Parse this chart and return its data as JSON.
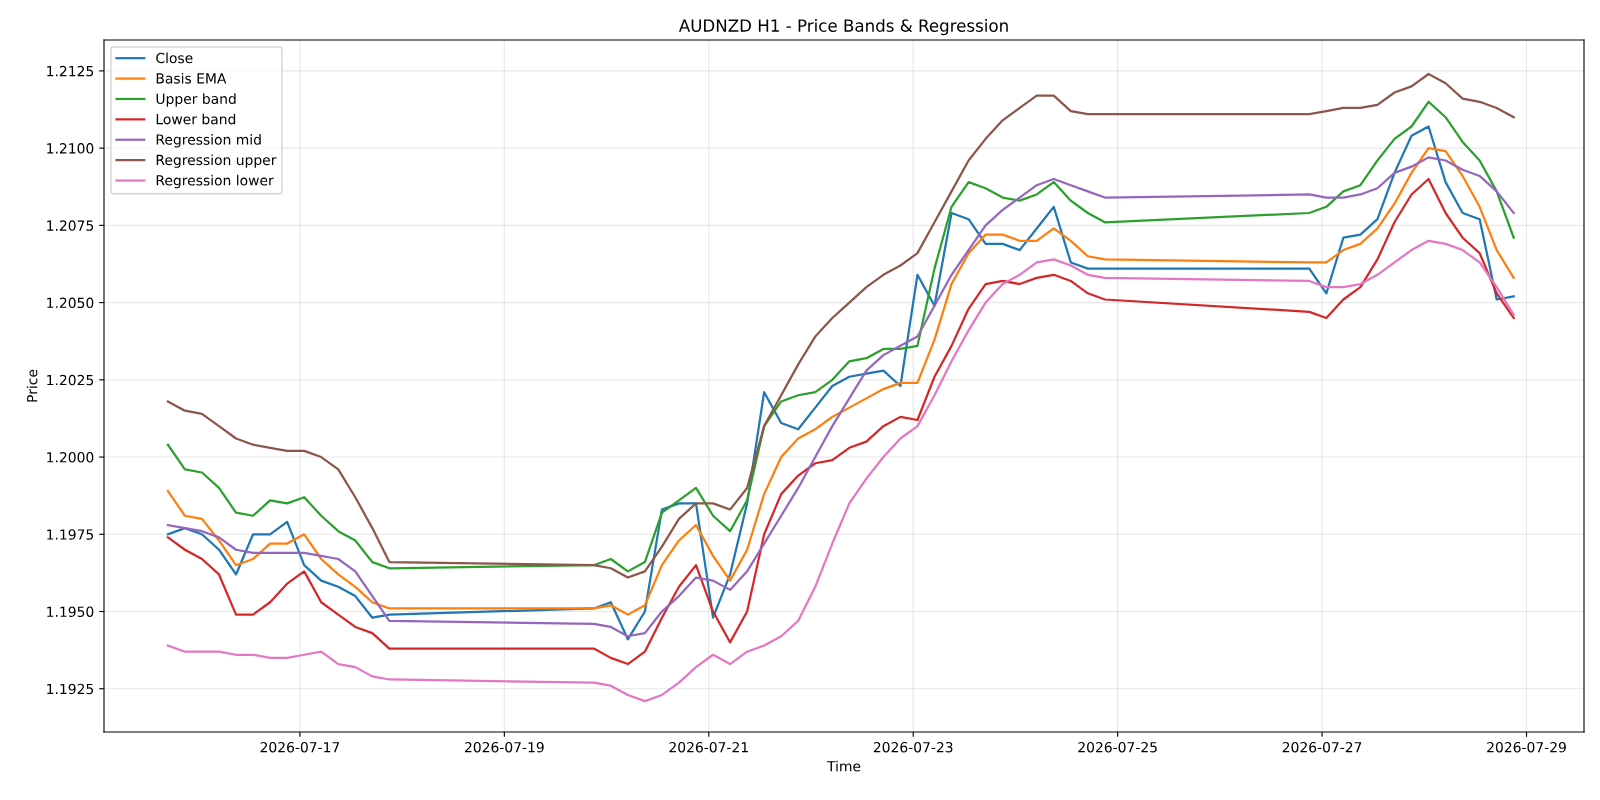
{
  "chart_data": {
    "type": "line",
    "title": "AUDNZD H1 - Price Bands & Regression",
    "xlabel": "Time",
    "ylabel": "Price",
    "x": [
      "2026-07-15T17:00",
      "2026-07-15T21:00",
      "2026-07-16T01:00",
      "2026-07-16T05:00",
      "2026-07-16T09:00",
      "2026-07-16T13:00",
      "2026-07-16T17:00",
      "2026-07-16T21:00",
      "2026-07-17T01:00",
      "2026-07-17T05:00",
      "2026-07-17T09:00",
      "2026-07-17T13:00",
      "2026-07-17T17:00",
      "2026-07-17T21:00",
      "2026-07-19T21:00",
      "2026-07-20T01:00",
      "2026-07-20T05:00",
      "2026-07-20T09:00",
      "2026-07-20T13:00",
      "2026-07-20T17:00",
      "2026-07-20T21:00",
      "2026-07-21T01:00",
      "2026-07-21T05:00",
      "2026-07-21T09:00",
      "2026-07-21T13:00",
      "2026-07-21T17:00",
      "2026-07-21T21:00",
      "2026-07-22T01:00",
      "2026-07-22T05:00",
      "2026-07-22T09:00",
      "2026-07-22T13:00",
      "2026-07-22T17:00",
      "2026-07-22T21:00",
      "2026-07-23T01:00",
      "2026-07-23T05:00",
      "2026-07-23T09:00",
      "2026-07-23T13:00",
      "2026-07-23T17:00",
      "2026-07-23T21:00",
      "2026-07-24T01:00",
      "2026-07-24T05:00",
      "2026-07-24T09:00",
      "2026-07-24T13:00",
      "2026-07-24T17:00",
      "2026-07-24T21:00",
      "2026-07-26T21:00",
      "2026-07-27T01:00",
      "2026-07-27T05:00",
      "2026-07-27T09:00",
      "2026-07-27T13:00",
      "2026-07-27T17:00",
      "2026-07-27T21:00",
      "2026-07-28T01:00",
      "2026-07-28T05:00",
      "2026-07-28T09:00",
      "2026-07-28T13:00",
      "2026-07-28T17:00",
      "2026-07-28T21:00"
    ],
    "series": [
      {
        "name": "Close",
        "color": "#1f77b4",
        "values": [
          1.1975,
          1.1977,
          1.1975,
          1.197,
          1.1962,
          1.1975,
          1.1975,
          1.1979,
          1.1965,
          1.196,
          1.1958,
          1.1955,
          1.1948,
          1.1949,
          1.1951,
          1.1953,
          1.1941,
          1.195,
          1.1983,
          1.1985,
          1.1985,
          1.1948,
          1.1962,
          1.1985,
          1.2021,
          1.2011,
          1.2009,
          1.2016,
          1.2023,
          1.2026,
          1.2027,
          1.2028,
          1.2023,
          1.2059,
          1.2049,
          1.2079,
          1.2077,
          1.2069,
          1.2069,
          1.2067,
          1.2074,
          1.2081,
          1.2063,
          1.2061,
          1.2061,
          1.2061,
          1.2053,
          1.2071,
          1.2072,
          1.2077,
          1.2092,
          1.2104,
          1.2107,
          1.2089,
          1.2079,
          1.2077,
          1.2051,
          1.2052
        ]
      },
      {
        "name": "Basis EMA",
        "color": "#ff7f0e",
        "values": [
          1.1989,
          1.1981,
          1.198,
          1.1973,
          1.1965,
          1.1967,
          1.1972,
          1.1972,
          1.1975,
          1.1967,
          1.1962,
          1.1958,
          1.1953,
          1.1951,
          1.1951,
          1.1952,
          1.1949,
          1.1952,
          1.1965,
          1.1973,
          1.1978,
          1.1968,
          1.196,
          1.197,
          1.1988,
          1.2,
          1.2006,
          1.2009,
          1.2013,
          1.2016,
          1.2019,
          1.2022,
          1.2024,
          1.2024,
          1.2038,
          1.2056,
          1.2066,
          1.2072,
          1.2072,
          1.207,
          1.207,
          1.2074,
          1.207,
          1.2065,
          1.2064,
          1.2063,
          1.2063,
          1.2067,
          1.2069,
          1.2074,
          1.2082,
          1.2092,
          1.21,
          1.2099,
          1.2091,
          1.2081,
          1.2067,
          1.2058
        ]
      },
      {
        "name": "Upper band",
        "color": "#2ca02c",
        "values": [
          1.2004,
          1.1996,
          1.1995,
          1.199,
          1.1982,
          1.1981,
          1.1986,
          1.1985,
          1.1987,
          1.1981,
          1.1976,
          1.1973,
          1.1966,
          1.1964,
          1.1965,
          1.1967,
          1.1963,
          1.1966,
          1.1982,
          1.1986,
          1.199,
          1.1981,
          1.1976,
          1.1986,
          1.201,
          1.2018,
          1.202,
          1.2021,
          1.2025,
          1.2031,
          1.2032,
          1.2035,
          1.2035,
          1.2036,
          1.2061,
          1.2081,
          1.2089,
          1.2087,
          1.2084,
          1.2083,
          1.2085,
          1.2089,
          1.2083,
          1.2079,
          1.2076,
          1.2079,
          1.2081,
          1.2086,
          1.2088,
          1.2096,
          1.2103,
          1.2107,
          1.2115,
          1.211,
          1.2102,
          1.2096,
          1.2086,
          1.2071
        ]
      },
      {
        "name": "Lower band",
        "color": "#d62728",
        "values": [
          1.1974,
          1.197,
          1.1967,
          1.1962,
          1.1949,
          1.1949,
          1.1953,
          1.1959,
          1.1963,
          1.1953,
          1.1949,
          1.1945,
          1.1943,
          1.1938,
          1.1938,
          1.1935,
          1.1933,
          1.1937,
          1.1948,
          1.1958,
          1.1965,
          1.195,
          1.194,
          1.195,
          1.1975,
          1.1988,
          1.1994,
          1.1998,
          1.1999,
          1.2003,
          1.2005,
          1.201,
          1.2013,
          1.2012,
          1.2026,
          1.2036,
          1.2048,
          1.2056,
          1.2057,
          1.2056,
          1.2058,
          1.2059,
          1.2057,
          1.2053,
          1.2051,
          1.2047,
          1.2045,
          1.2051,
          1.2055,
          1.2064,
          1.2076,
          1.2085,
          1.209,
          1.2079,
          1.2071,
          1.2066,
          1.2053,
          1.2045
        ]
      },
      {
        "name": "Regression mid",
        "color": "#9467bd",
        "values": [
          1.1978,
          1.1977,
          1.1976,
          1.1974,
          1.197,
          1.1969,
          1.1969,
          1.1969,
          1.1969,
          1.1968,
          1.1967,
          1.1963,
          1.1955,
          1.1947,
          1.1946,
          1.1945,
          1.1942,
          1.1943,
          1.195,
          1.1955,
          1.1961,
          1.196,
          1.1957,
          1.1963,
          1.1972,
          1.1981,
          1.199,
          1.2,
          1.201,
          1.2019,
          1.2028,
          1.2033,
          1.2036,
          1.2039,
          1.2049,
          1.2059,
          1.2067,
          1.2075,
          1.208,
          1.2084,
          1.2088,
          1.209,
          1.2088,
          1.2086,
          1.2084,
          1.2085,
          1.2084,
          1.2084,
          1.2085,
          1.2087,
          1.2092,
          1.2094,
          1.2097,
          1.2096,
          1.2093,
          1.2091,
          1.2086,
          1.2079
        ]
      },
      {
        "name": "Regression upper",
        "color": "#8c564b",
        "values": [
          1.2018,
          1.2015,
          1.2014,
          1.201,
          1.2006,
          1.2004,
          1.2003,
          1.2002,
          1.2002,
          1.2,
          1.1996,
          1.1987,
          1.1977,
          1.1966,
          1.1965,
          1.1964,
          1.1961,
          1.1963,
          1.1971,
          1.198,
          1.1985,
          1.1985,
          1.1983,
          1.199,
          1.201,
          1.202,
          1.203,
          1.2039,
          1.2045,
          1.205,
          1.2055,
          1.2059,
          1.2062,
          1.2066,
          1.2076,
          1.2086,
          1.2096,
          1.2103,
          1.2109,
          1.2113,
          1.2117,
          1.2117,
          1.2112,
          1.2111,
          1.2111,
          1.2111,
          1.2112,
          1.2113,
          1.2113,
          1.2114,
          1.2118,
          1.212,
          1.2124,
          1.2121,
          1.2116,
          1.2115,
          1.2113,
          1.211
        ]
      },
      {
        "name": "Regression lower",
        "color": "#e377c2",
        "values": [
          1.1939,
          1.1937,
          1.1937,
          1.1937,
          1.1936,
          1.1936,
          1.1935,
          1.1935,
          1.1936,
          1.1937,
          1.1933,
          1.1932,
          1.1929,
          1.1928,
          1.1927,
          1.1926,
          1.1923,
          1.1921,
          1.1923,
          1.1927,
          1.1932,
          1.1936,
          1.1933,
          1.1937,
          1.1939,
          1.1942,
          1.1947,
          1.1958,
          1.1972,
          1.1985,
          1.1993,
          1.2,
          1.2006,
          1.201,
          1.202,
          1.2031,
          1.2041,
          1.205,
          1.2056,
          1.2059,
          1.2063,
          1.2064,
          1.2062,
          1.2059,
          1.2058,
          1.2057,
          1.2055,
          1.2055,
          1.2056,
          1.2059,
          1.2063,
          1.2067,
          1.207,
          1.2069,
          1.2067,
          1.2063,
          1.2055,
          1.2046
        ]
      }
    ],
    "xlim": [
      "2026-07-15T02:00",
      "2026-07-29T13:30"
    ],
    "xticks": [
      "2026-07-17",
      "2026-07-19",
      "2026-07-21",
      "2026-07-23",
      "2026-07-25",
      "2026-07-27",
      "2026-07-29"
    ],
    "ylim": [
      1.1911,
      1.2135
    ],
    "yticks": [
      {
        "value": 1.1925,
        "label": "1.1925"
      },
      {
        "value": 1.195,
        "label": "1.1950"
      },
      {
        "value": 1.1975,
        "label": "1.1975"
      },
      {
        "value": 1.2,
        "label": "1.2000"
      },
      {
        "value": 1.2025,
        "label": "1.2025"
      },
      {
        "value": 1.205,
        "label": "1.2050"
      },
      {
        "value": 1.2075,
        "label": "1.2075"
      },
      {
        "value": 1.21,
        "label": "1.2100"
      },
      {
        "value": 1.2125,
        "label": "1.2125"
      }
    ],
    "grid": true,
    "legend": "top left",
    "marker": "none",
    "line_style": "solid"
  }
}
